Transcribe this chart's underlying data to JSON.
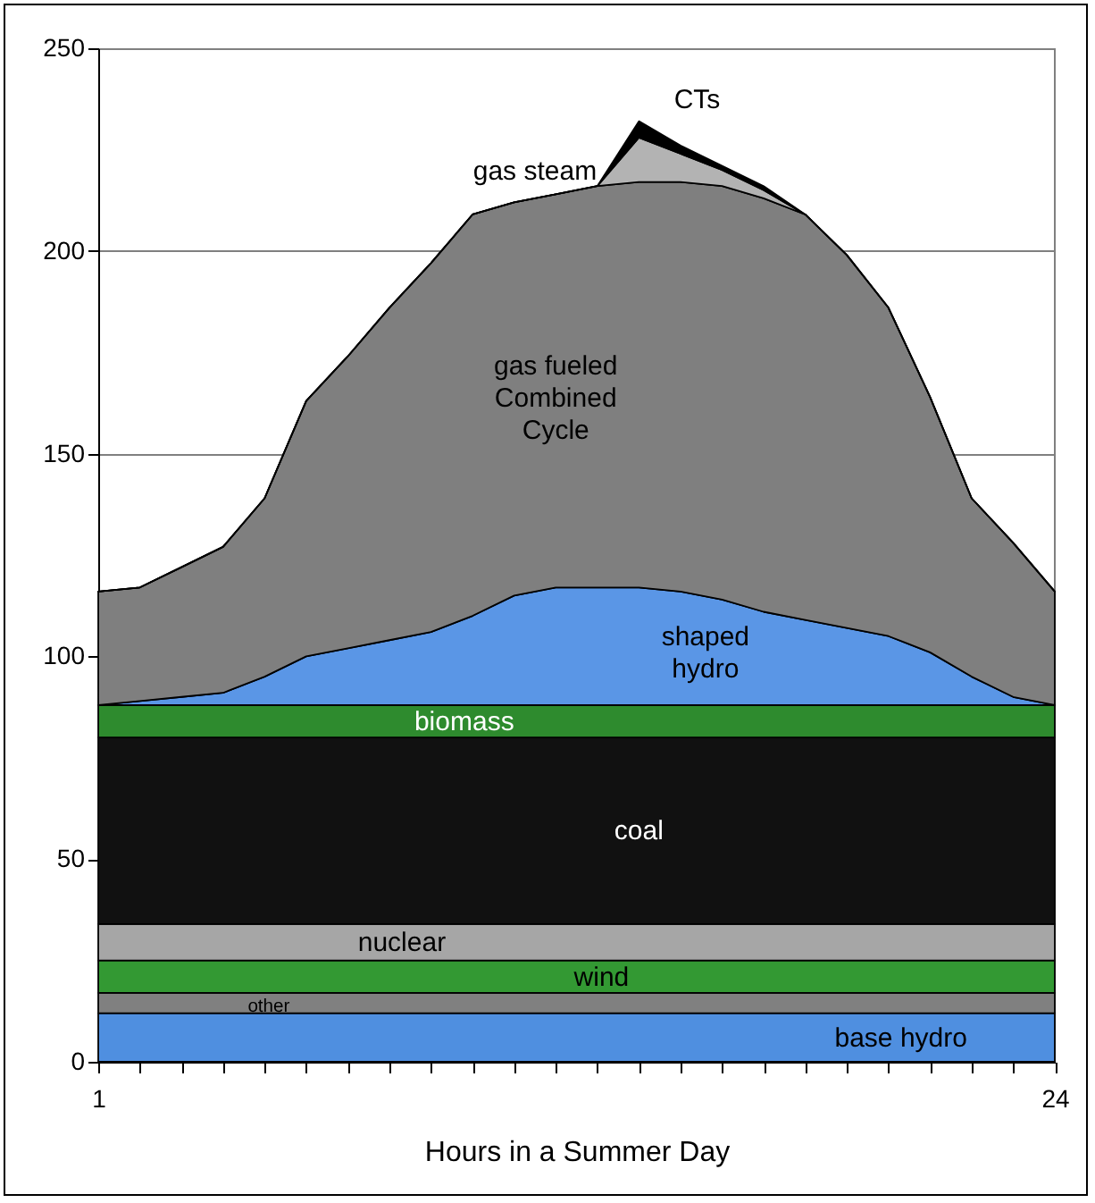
{
  "chart_data": {
    "type": "area",
    "stacked": true,
    "xlabel": "Hours in a Summer Day",
    "x": [
      1,
      2,
      3,
      4,
      5,
      6,
      7,
      8,
      9,
      10,
      11,
      12,
      13,
      14,
      15,
      16,
      17,
      18,
      19,
      20,
      21,
      22,
      23,
      24
    ],
    "xlim": [
      1,
      24
    ],
    "xticks": [
      1,
      {
        "value": 2,
        "label": null
      },
      {
        "value": 3,
        "label": null
      },
      {
        "value": 4,
        "label": null
      },
      {
        "value": 5,
        "label": null
      },
      {
        "value": 6,
        "label": null
      },
      {
        "value": 7,
        "label": null
      },
      {
        "value": 8,
        "label": null
      },
      {
        "value": 9,
        "label": null
      },
      {
        "value": 10,
        "label": null
      },
      {
        "value": 11,
        "label": null
      },
      {
        "value": 12,
        "label": null
      },
      {
        "value": 13,
        "label": null
      },
      {
        "value": 14,
        "label": null
      },
      {
        "value": 15,
        "label": null
      },
      {
        "value": 16,
        "label": null
      },
      {
        "value": 17,
        "label": null
      },
      {
        "value": 18,
        "label": null
      },
      {
        "value": 19,
        "label": null
      },
      {
        "value": 20,
        "label": null
      },
      {
        "value": 21,
        "label": null
      },
      {
        "value": 22,
        "label": null
      },
      {
        "value": 23,
        "label": null
      },
      24
    ],
    "ylim": [
      0,
      250
    ],
    "yticks": [
      0,
      50,
      100,
      150,
      200,
      250
    ],
    "grid": "y",
    "legend": false,
    "series": [
      {
        "name": "base hydro",
        "color": "#4f8fe0",
        "values": [
          12,
          12,
          12,
          12,
          12,
          12,
          12,
          12,
          12,
          12,
          12,
          12,
          12,
          12,
          12,
          12,
          12,
          12,
          12,
          12,
          12,
          12,
          12,
          12
        ]
      },
      {
        "name": "other",
        "color": "#808080",
        "values": [
          5,
          5,
          5,
          5,
          5,
          5,
          5,
          5,
          5,
          5,
          5,
          5,
          5,
          5,
          5,
          5,
          5,
          5,
          5,
          5,
          5,
          5,
          5,
          5
        ]
      },
      {
        "name": "wind",
        "color": "#339933",
        "values": [
          8,
          8,
          8,
          8,
          8,
          8,
          8,
          8,
          8,
          8,
          8,
          8,
          8,
          8,
          8,
          8,
          8,
          8,
          8,
          8,
          8,
          8,
          8,
          8
        ]
      },
      {
        "name": "nuclear",
        "color": "#a6a6a6",
        "values": [
          9,
          9,
          9,
          9,
          9,
          9,
          9,
          9,
          9,
          9,
          9,
          9,
          9,
          9,
          9,
          9,
          9,
          9,
          9,
          9,
          9,
          9,
          9,
          9
        ]
      },
      {
        "name": "coal",
        "color": "#111111",
        "values": [
          46,
          46,
          46,
          46,
          46,
          46,
          46,
          46,
          46,
          46,
          46,
          46,
          46,
          46,
          46,
          46,
          46,
          46,
          46,
          46,
          46,
          46,
          46,
          46
        ]
      },
      {
        "name": "biomass",
        "color": "#2e8b2e",
        "values": [
          8,
          8,
          8,
          8,
          8,
          8,
          8,
          8,
          8,
          8,
          8,
          8,
          8,
          8,
          8,
          8,
          8,
          8,
          8,
          8,
          8,
          8,
          8,
          8
        ]
      },
      {
        "name": "shaped hydro",
        "color": "#5a96e6",
        "values": [
          0,
          1,
          2,
          3,
          7,
          12,
          14,
          16,
          18,
          22,
          27,
          29,
          29,
          29,
          28,
          26,
          23,
          21,
          19,
          17,
          13,
          7,
          2,
          0
        ]
      },
      {
        "name": "gas fueled Combined Cycle",
        "color": "#7f7f7f",
        "values": [
          28,
          28,
          32,
          36,
          44,
          63,
          72,
          82,
          91,
          99,
          97,
          97,
          99,
          100,
          101,
          102,
          102,
          100,
          92,
          81,
          63,
          44,
          38,
          28
        ]
      },
      {
        "name": "gas steam",
        "color": "#b3b3b3",
        "values": [
          0,
          0,
          0,
          0,
          0,
          0,
          0,
          0,
          0,
          0,
          0,
          0,
          0,
          11,
          7,
          4,
          2,
          0,
          0,
          0,
          0,
          0,
          0,
          0
        ]
      },
      {
        "name": "CTs",
        "color": "#000000",
        "values": [
          0,
          0,
          0,
          0,
          0,
          0,
          0,
          0,
          0,
          0,
          0,
          0,
          0,
          4,
          2,
          1,
          1,
          0,
          0,
          0,
          0,
          0,
          0,
          0
        ]
      }
    ]
  }
}
